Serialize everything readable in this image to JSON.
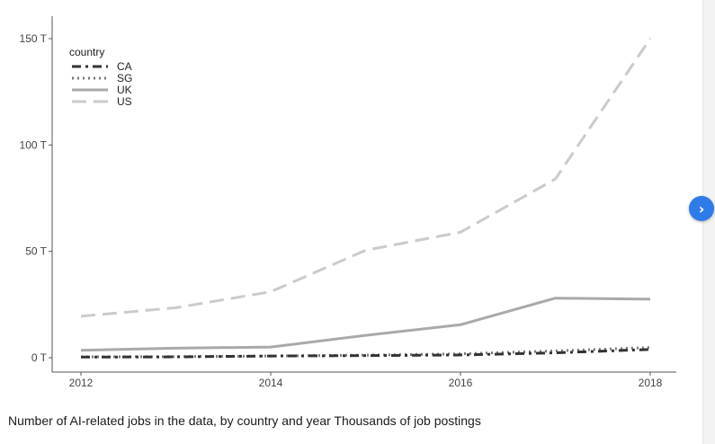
{
  "caption": "Number of AI-related jobs in the data, by country and year Thousands of job postings",
  "next_button": {
    "icon": "chevron-right-icon",
    "glyph": "›",
    "color": "#2f7be8"
  },
  "chart_data": {
    "type": "line",
    "legend_title": "country",
    "legend_position": "top-left",
    "grid": false,
    "x": [
      2012,
      2013,
      2014,
      2015,
      2016,
      2017,
      2018
    ],
    "xticks": [
      2012,
      2014,
      2016,
      2018
    ],
    "xlim": [
      2012,
      2018
    ],
    "yticks": [
      0,
      50,
      100,
      150
    ],
    "ytick_labels": [
      "0 T",
      "50 T",
      "100 T",
      "150 T"
    ],
    "ylim": [
      0,
      150
    ],
    "series": [
      {
        "name": "CA",
        "values": [
          0.3,
          0.4,
          0.8,
          1.0,
          1.3,
          2.3,
          3.9
        ],
        "color": "#333333",
        "dash": "10,5,3,5"
      },
      {
        "name": "SG",
        "values": [
          0.4,
          0.5,
          0.8,
          1.2,
          1.8,
          3.2,
          4.8
        ],
        "color": "#777777",
        "dash": "2,4"
      },
      {
        "name": "UK",
        "values": [
          3.5,
          4.5,
          5.0,
          10.5,
          15.5,
          28.0,
          27.5
        ],
        "color": "#a9a9a9",
        "dash": ""
      },
      {
        "name": "US",
        "values": [
          19.5,
          23.5,
          31.0,
          50.5,
          59.0,
          84.0,
          150.0
        ],
        "color": "#cbcbcb",
        "dash": "16,8"
      }
    ]
  }
}
